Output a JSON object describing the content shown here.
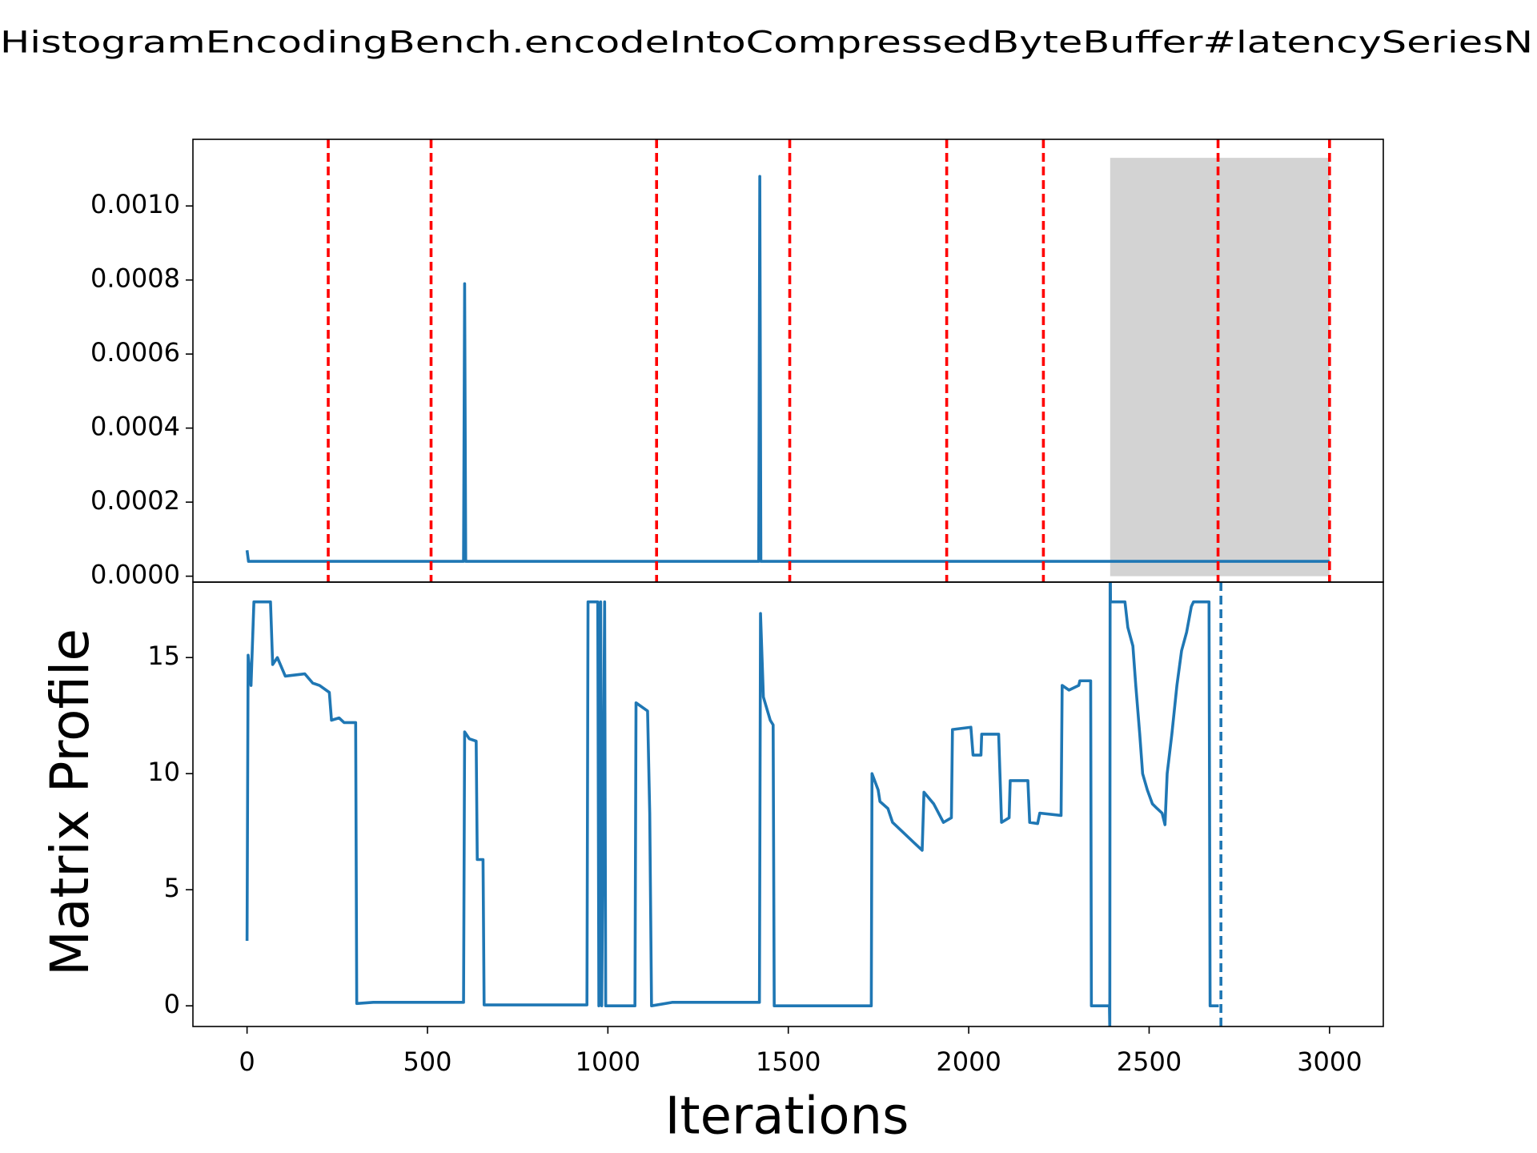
{
  "chart_data": [
    {
      "type": "line",
      "title": "HistogramEncodingBench.encodeIntoCompressedByteBuffer#latencySeriesN",
      "xlim": [
        -150,
        3149
      ],
      "ylim": [
        -1.6e-05,
        0.00118
      ],
      "yticks": [
        {
          "value": 0,
          "label": "0.0000"
        },
        {
          "value": 0.0002,
          "label": "0.0002"
        },
        {
          "value": 0.0004,
          "label": "0.0004"
        },
        {
          "value": 0.0006,
          "label": "0.0006"
        },
        {
          "value": 0.0008,
          "label": "0.0008"
        },
        {
          "value": 0.001,
          "label": "0.0010"
        }
      ],
      "series": [
        {
          "color": "#1f77b4",
          "x": [
            0,
            4,
            600,
            603,
            606,
            1418,
            1421,
            1424,
            3000
          ],
          "values": [
            7e-05,
            4e-05,
            4e-05,
            0.00079,
            4e-05,
            4e-05,
            0.00108,
            4e-05,
            4e-05
          ]
        }
      ],
      "vlines": {
        "x": [
          225,
          510,
          1135,
          1504,
          1939,
          2207,
          2691,
          3000
        ],
        "color": "#ff0000",
        "style": "dashed"
      },
      "span": {
        "x0": 2392,
        "x1": 3000,
        "y0": 0,
        "y1": 0.00113,
        "color": "#d3d3d3"
      }
    },
    {
      "type": "line",
      "xlabel": "Iterations",
      "ylabel": "Matrix Profile",
      "xlim": [
        -150,
        3149
      ],
      "ylim": [
        -0.89,
        18.25
      ],
      "xticks": [
        0,
        500,
        1000,
        1500,
        2000,
        2500,
        3000
      ],
      "yticks": [
        0,
        5,
        10,
        15
      ],
      "series": [
        {
          "color": "#1f77b4",
          "x": [
            0,
            3,
            11,
            19,
            65,
            71,
            84,
            106,
            160,
            182,
            201,
            228,
            234,
            255,
            269,
            301,
            304,
            350,
            600,
            603,
            616,
            635,
            638,
            654,
            657,
            942,
            945,
            972,
            975,
            980,
            983,
            991,
            994,
            1075,
            1078,
            1110,
            1116,
            1121,
            1178,
            1420,
            1423,
            1431,
            1450,
            1458,
            1461,
            1730,
            1732,
            1749,
            1754,
            1776,
            1789,
            1830,
            1857,
            1871,
            1876,
            1903,
            1930,
            1952,
            1955,
            2006,
            2012,
            2034,
            2036,
            2083,
            2091,
            2112,
            2115,
            2164,
            2169,
            2191,
            2197,
            2256,
            2259,
            2278,
            2305,
            2308,
            2338,
            2340,
            2390,
            2391,
            2392,
            2393,
            2433,
            2441,
            2455,
            2463,
            2474,
            2482,
            2495,
            2509,
            2522,
            2536,
            2544,
            2550,
            2563,
            2577,
            2590,
            2604,
            2617,
            2623,
            2666,
            2669,
            2693
          ],
          "values": [
            2.8,
            15.1,
            13.8,
            17.4,
            17.4,
            14.7,
            15.0,
            14.2,
            14.3,
            13.9,
            13.8,
            13.5,
            12.3,
            12.4,
            12.2,
            12.2,
            0.1,
            0.15,
            0.15,
            11.8,
            11.5,
            11.4,
            6.3,
            6.3,
            0.04,
            0.04,
            17.4,
            17.4,
            0,
            17.4,
            0,
            17.4,
            0,
            0,
            13.05,
            12.7,
            8.3,
            0,
            0.15,
            0.15,
            16.9,
            13.3,
            12.3,
            12.1,
            0,
            0,
            10.0,
            9.3,
            8.8,
            8.5,
            7.9,
            7.3,
            6.9,
            6.7,
            9.2,
            8.7,
            7.9,
            8.1,
            11.9,
            12.0,
            10.8,
            10.8,
            11.7,
            11.7,
            7.9,
            8.1,
            9.7,
            9.7,
            7.9,
            7.85,
            8.3,
            8.2,
            13.8,
            13.6,
            13.8,
            14.0,
            14.0,
            0,
            0,
            -1,
            20,
            17.4,
            17.4,
            16.3,
            15.5,
            13.8,
            11.7,
            10.0,
            9.3,
            8.7,
            8.5,
            8.3,
            7.8,
            10.0,
            11.7,
            13.8,
            15.3,
            16.1,
            17.2,
            17.4,
            17.4,
            0,
            0
          ]
        }
      ],
      "vlines": {
        "x": [
          2699
        ],
        "color": "#1f77b4",
        "style": "dashed"
      }
    }
  ]
}
